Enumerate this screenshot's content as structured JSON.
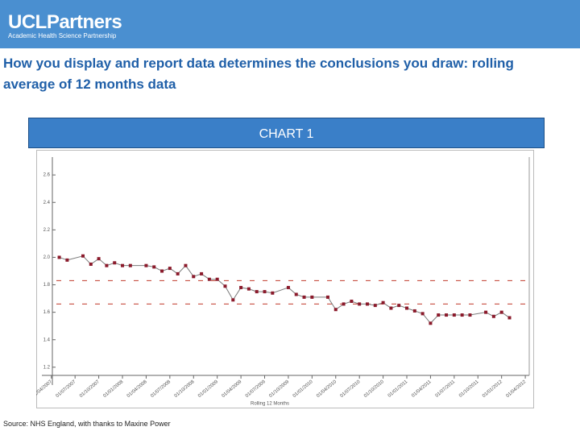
{
  "header": {
    "logo": "UCLPartners",
    "tagline": "Academic Health Science Partnership"
  },
  "title": "How you display and report data determines the conclusions you draw: rolling average of 12 months data",
  "chart_label": "CHART 1",
  "source": "Source: NHS England, with thanks to Maxine Power",
  "chart_data": {
    "type": "line",
    "x_label": "Rolling 12 Months",
    "x": [
      1,
      2,
      4,
      5,
      6,
      7,
      8,
      9,
      10,
      12,
      13,
      14,
      15,
      16,
      17,
      18,
      19,
      20,
      21,
      22,
      23,
      24,
      25,
      26,
      27,
      28,
      30,
      31,
      32,
      33,
      35,
      36,
      37,
      38,
      39,
      40,
      41,
      42,
      43,
      44,
      45,
      46,
      47,
      48,
      49,
      50,
      51,
      52,
      53,
      55,
      56,
      57,
      58
    ],
    "series": [
      {
        "color": "#8b1a2b",
        "line_color": "#7a7a7a",
        "values": [
          2.0,
          1.98,
          2.01,
          1.95,
          1.99,
          1.94,
          1.96,
          1.94,
          1.94,
          1.94,
          1.93,
          1.9,
          1.92,
          1.88,
          1.94,
          1.86,
          1.88,
          1.84,
          1.84,
          1.79,
          1.69,
          1.78,
          1.77,
          1.75,
          1.75,
          1.74,
          1.78,
          1.73,
          1.71,
          1.71,
          1.71,
          1.62,
          1.66,
          1.68,
          1.66,
          1.66,
          1.65,
          1.67,
          1.63,
          1.65,
          1.63,
          1.61,
          1.59,
          1.52,
          1.58,
          1.58,
          1.58,
          1.58,
          1.58,
          1.6,
          1.57,
          1.6,
          1.56
        ]
      }
    ],
    "reference_lines": [
      {
        "value": 1.83,
        "color": "#c0392b"
      },
      {
        "value": 1.66,
        "color": "#c0392b"
      }
    ],
    "xlim": [
      -1.2,
      60.5
    ],
    "xticks": [
      {
        "value": 0,
        "label": "01/04/2007"
      },
      {
        "value": 3,
        "label": "01/07/2007"
      },
      {
        "value": 6,
        "label": "01/10/2007"
      },
      {
        "value": 9,
        "label": "01/01/2008"
      },
      {
        "value": 12,
        "label": "01/04/2008"
      },
      {
        "value": 15,
        "label": "01/07/2008"
      },
      {
        "value": 18,
        "label": "01/10/2008"
      },
      {
        "value": 21,
        "label": "01/01/2009"
      },
      {
        "value": 24,
        "label": "01/04/2009"
      },
      {
        "value": 27,
        "label": "01/07/2009"
      },
      {
        "value": 30,
        "label": "01/10/2009"
      },
      {
        "value": 33,
        "label": "01/01/2010"
      },
      {
        "value": 36,
        "label": "01/04/2010"
      },
      {
        "value": 39,
        "label": "01/07/2010"
      },
      {
        "value": 42,
        "label": "01/10/2010"
      },
      {
        "value": 45,
        "label": "01/01/2011"
      },
      {
        "value": 48,
        "label": "01/04/2011"
      },
      {
        "value": 51,
        "label": "01/07/2011"
      },
      {
        "value": 54,
        "label": "01/10/2011"
      },
      {
        "value": 57,
        "label": "01/01/2012"
      },
      {
        "value": 60,
        "label": "01/04/2012"
      }
    ],
    "ylim": [
      1.07,
      2.73
    ],
    "yticks": [
      1.2,
      1.4,
      1.6,
      1.8,
      {
        "value": 2,
        "label": "2.0"
      },
      2.2,
      2.4,
      2.6
    ]
  }
}
